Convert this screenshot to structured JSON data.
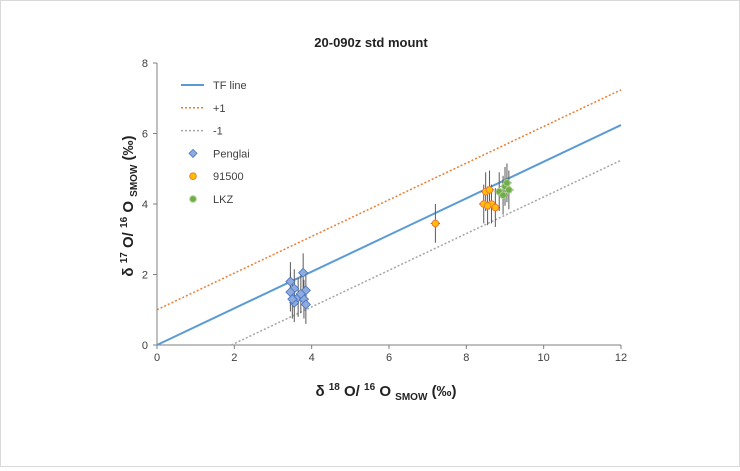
{
  "chart_data": {
    "type": "scatter",
    "title": "20-090z std mount",
    "xlabel": "δ18O/16OSMOW (‰)",
    "ylabel": "δ17O/16OSMOW (‰)",
    "xlim": [
      0,
      12
    ],
    "ylim": [
      0,
      8
    ],
    "x_ticks": [
      0,
      2,
      4,
      6,
      8,
      10,
      12
    ],
    "y_ticks": [
      0,
      2,
      4,
      6,
      8
    ],
    "grid": false,
    "legend_position": "top-left",
    "lines": [
      {
        "name": "TF line",
        "slope": 0.52,
        "intercept": 0,
        "color": "#5b9bd5",
        "style": "solid"
      },
      {
        "name": "+1",
        "slope": 0.52,
        "intercept": 1,
        "color": "#ed7d31",
        "style": "dotted"
      },
      {
        "name": "-1",
        "slope": 0.52,
        "intercept": -1,
        "color": "#a5a5a5",
        "style": "dotted"
      }
    ],
    "series": [
      {
        "name": "Penglai",
        "marker": "diamond",
        "color": "#8faadc",
        "points": [
          {
            "x": 3.45,
            "y": 1.8,
            "xerr": 0.12,
            "yerr": 0.55
          },
          {
            "x": 3.55,
            "y": 1.6,
            "xerr": 0.12,
            "yerr": 0.55
          },
          {
            "x": 3.78,
            "y": 2.05,
            "xerr": 0.12,
            "yerr": 0.55
          },
          {
            "x": 3.85,
            "y": 1.55,
            "xerr": 0.12,
            "yerr": 0.55
          },
          {
            "x": 3.45,
            "y": 1.5,
            "xerr": 0.12,
            "yerr": 0.55
          },
          {
            "x": 3.65,
            "y": 1.35,
            "xerr": 0.12,
            "yerr": 0.55
          },
          {
            "x": 3.55,
            "y": 1.2,
            "xerr": 0.12,
            "yerr": 0.55
          },
          {
            "x": 3.8,
            "y": 1.3,
            "xerr": 0.12,
            "yerr": 0.55
          },
          {
            "x": 3.72,
            "y": 1.45,
            "xerr": 0.12,
            "yerr": 0.55
          },
          {
            "x": 3.85,
            "y": 1.15,
            "xerr": 0.12,
            "yerr": 0.55
          },
          {
            "x": 3.5,
            "y": 1.3,
            "xerr": 0.12,
            "yerr": 0.55
          }
        ]
      },
      {
        "name": "91500",
        "marker": "circle",
        "color": "#ffc000",
        "edge": "#ed7d31",
        "points": [
          {
            "x": 8.5,
            "y": 4.35,
            "xerr": 0.12,
            "yerr": 0.55
          },
          {
            "x": 8.6,
            "y": 4.4,
            "xerr": 0.12,
            "yerr": 0.55
          },
          {
            "x": 8.45,
            "y": 4.0,
            "xerr": 0.12,
            "yerr": 0.55
          },
          {
            "x": 8.65,
            "y": 4.0,
            "xerr": 0.12,
            "yerr": 0.55
          },
          {
            "x": 8.75,
            "y": 3.9,
            "xerr": 0.12,
            "yerr": 0.55
          },
          {
            "x": 8.55,
            "y": 3.95,
            "xerr": 0.12,
            "yerr": 0.55
          },
          {
            "x": 7.2,
            "y": 3.45,
            "xerr": 0.12,
            "yerr": 0.55
          }
        ]
      },
      {
        "name": "LKZ",
        "marker": "circle",
        "color": "#70ad47",
        "edge": "#a9d18e",
        "points": [
          {
            "x": 8.85,
            "y": 4.35,
            "xerr": 0.12,
            "yerr": 0.55
          },
          {
            "x": 9.0,
            "y": 4.5,
            "xerr": 0.12,
            "yerr": 0.55
          },
          {
            "x": 9.1,
            "y": 4.4,
            "xerr": 0.12,
            "yerr": 0.55
          },
          {
            "x": 8.95,
            "y": 4.25,
            "xerr": 0.12,
            "yerr": 0.55
          },
          {
            "x": 9.05,
            "y": 4.6,
            "xerr": 0.12,
            "yerr": 0.55
          }
        ]
      }
    ]
  },
  "axis_text": {
    "x": {
      "delta": "δ",
      "mass1": "18",
      "el1": "O/",
      "mass2": "16",
      "el2": "O",
      "sub": "SMOW",
      "unit": " (‰)"
    },
    "y": {
      "delta": "δ",
      "mass1": "17",
      "el1": "O/",
      "mass2": "16",
      "el2": "O",
      "sub": "SMOW",
      "unit": " (‰)"
    }
  }
}
